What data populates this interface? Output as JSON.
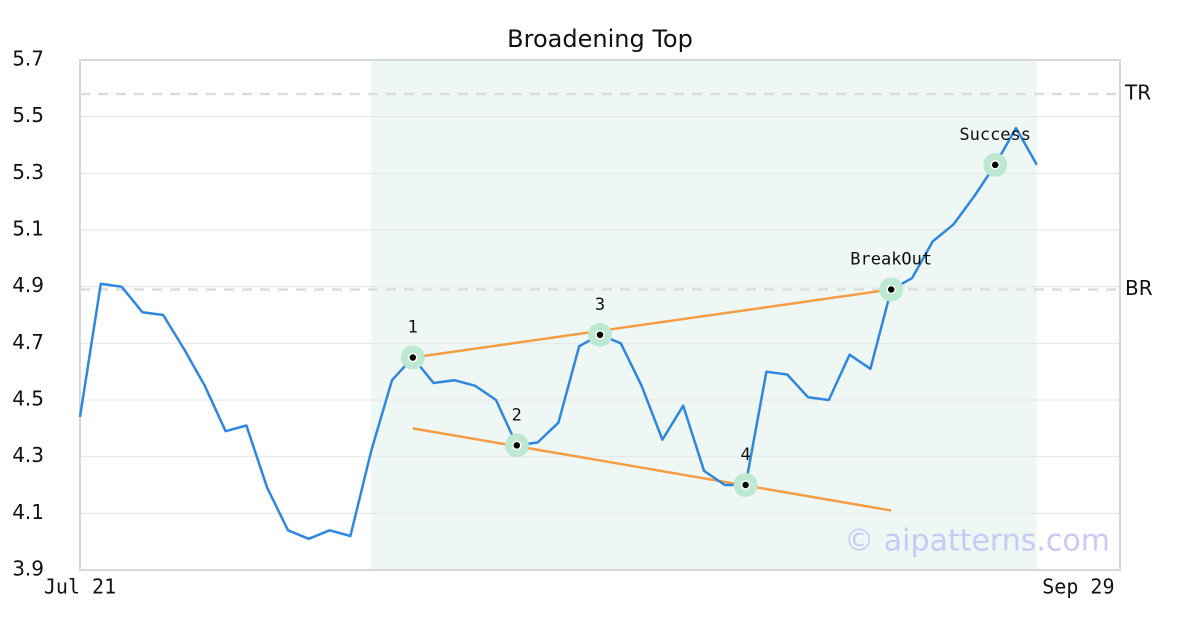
{
  "chart_data": {
    "type": "line",
    "title": "Broadening Top",
    "categories": [
      "Jul 21",
      null,
      null,
      null,
      null,
      null,
      null,
      null,
      null,
      null,
      null,
      null,
      null,
      null,
      null,
      null,
      null,
      null,
      null,
      null,
      null,
      null,
      null,
      null,
      null,
      null,
      null,
      null,
      null,
      null,
      null,
      null,
      null,
      null,
      null,
      null,
      null,
      null,
      null,
      null,
      null,
      null,
      null,
      null,
      null,
      null,
      null,
      null,
      "Sep 29",
      null
    ],
    "values": [
      4.44,
      4.91,
      4.9,
      4.81,
      4.8,
      4.68,
      4.55,
      4.39,
      4.41,
      4.19,
      4.04,
      4.01,
      4.04,
      4.02,
      4.32,
      4.57,
      4.65,
      4.56,
      4.57,
      4.55,
      4.5,
      4.34,
      4.35,
      4.42,
      4.69,
      4.73,
      4.7,
      4.55,
      4.36,
      4.48,
      4.25,
      4.2,
      4.2,
      4.6,
      4.59,
      4.51,
      4.5,
      4.66,
      4.61,
      4.89,
      4.93,
      5.06,
      5.12,
      5.22,
      5.33,
      5.46,
      5.33,
      null,
      null,
      null
    ],
    "color": "#2f87e0",
    "ylim": [
      3.9,
      5.7
    ],
    "yticks": [
      3.9,
      4.1,
      4.3,
      4.5,
      4.7,
      4.9,
      5.1,
      5.3,
      5.5,
      5.7
    ],
    "grid": true,
    "highlight": {
      "start": 14,
      "end": 46,
      "color": "#eef7f3"
    },
    "levels": [
      {
        "label": "TR",
        "value": 5.58
      },
      {
        "label": "BR",
        "value": 4.89
      }
    ],
    "trend_lines": [
      {
        "start": 16,
        "end": 39,
        "values": [
          4.65,
          4.89
        ],
        "color": "#f59d45"
      },
      {
        "start": 16,
        "end": 39,
        "values": [
          4.4,
          4.11
        ],
        "color": "#f59d45"
      }
    ],
    "annotations": [
      {
        "label": "1",
        "index": 16,
        "value": 4.65
      },
      {
        "label": "2",
        "index": 21,
        "value": 4.34
      },
      {
        "label": "3",
        "index": 25,
        "value": 4.73
      },
      {
        "label": "4",
        "index": 32,
        "value": 4.2
      },
      {
        "label": "BreakOut",
        "index": 39,
        "value": 4.89
      },
      {
        "label": "Success",
        "index": 44,
        "value": 5.33
      }
    ],
    "watermark": "© aipatterns.com"
  }
}
